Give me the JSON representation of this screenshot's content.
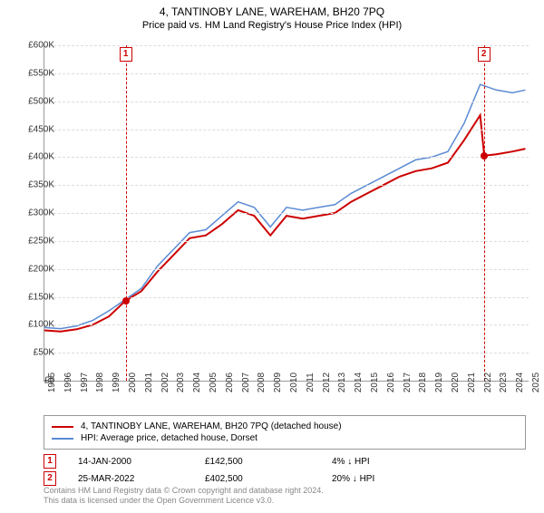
{
  "title": "4, TANTINOBY LANE, WAREHAM, BH20 7PQ",
  "subtitle": "Price paid vs. HM Land Registry's House Price Index (HPI)",
  "chart": {
    "type": "line",
    "x_start_year": 1995,
    "x_end_year": 2025,
    "ylim": [
      0,
      600000
    ],
    "ytick_step": 50000,
    "ylabels": [
      "£0",
      "£50K",
      "£100K",
      "£150K",
      "£200K",
      "£250K",
      "£300K",
      "£350K",
      "£400K",
      "£450K",
      "£500K",
      "£550K",
      "£600K"
    ],
    "xlabels": [
      "1995",
      "1996",
      "1997",
      "1998",
      "1999",
      "2000",
      "2001",
      "2002",
      "2003",
      "2004",
      "2005",
      "2006",
      "2007",
      "2008",
      "2009",
      "2010",
      "2011",
      "2012",
      "2013",
      "2014",
      "2015",
      "2016",
      "2017",
      "2018",
      "2019",
      "2020",
      "2021",
      "2022",
      "2023",
      "2024",
      "2025"
    ],
    "background_color": "#ffffff",
    "grid_color": "#dddddd",
    "series": [
      {
        "name": "property",
        "label": "4, TANTINOBY LANE, WAREHAM, BH20 7PQ (detached house)",
        "color": "#cc0000",
        "width": 2,
        "data": [
          [
            1995,
            90000
          ],
          [
            1996,
            88000
          ],
          [
            1997,
            92000
          ],
          [
            1998,
            100000
          ],
          [
            1999,
            115000
          ],
          [
            2000,
            142500
          ],
          [
            2001,
            160000
          ],
          [
            2002,
            195000
          ],
          [
            2003,
            225000
          ],
          [
            2004,
            255000
          ],
          [
            2005,
            260000
          ],
          [
            2006,
            280000
          ],
          [
            2007,
            305000
          ],
          [
            2008,
            295000
          ],
          [
            2009,
            260000
          ],
          [
            2010,
            295000
          ],
          [
            2011,
            290000
          ],
          [
            2012,
            295000
          ],
          [
            2013,
            300000
          ],
          [
            2014,
            320000
          ],
          [
            2015,
            335000
          ],
          [
            2016,
            350000
          ],
          [
            2017,
            365000
          ],
          [
            2018,
            375000
          ],
          [
            2019,
            380000
          ],
          [
            2020,
            390000
          ],
          [
            2021,
            430000
          ],
          [
            2022,
            475000
          ],
          [
            2022.25,
            402500
          ],
          [
            2023,
            405000
          ],
          [
            2024,
            410000
          ],
          [
            2024.8,
            415000
          ]
        ]
      },
      {
        "name": "hpi",
        "label": "HPI: Average price, detached house, Dorset",
        "color": "#5b8bd4",
        "width": 1.5,
        "data": [
          [
            1995,
            95000
          ],
          [
            1996,
            93000
          ],
          [
            1997,
            98000
          ],
          [
            1998,
            108000
          ],
          [
            1999,
            125000
          ],
          [
            2000,
            145000
          ],
          [
            2001,
            165000
          ],
          [
            2002,
            205000
          ],
          [
            2003,
            235000
          ],
          [
            2004,
            265000
          ],
          [
            2005,
            270000
          ],
          [
            2006,
            295000
          ],
          [
            2007,
            320000
          ],
          [
            2008,
            310000
          ],
          [
            2009,
            275000
          ],
          [
            2010,
            310000
          ],
          [
            2011,
            305000
          ],
          [
            2012,
            310000
          ],
          [
            2013,
            315000
          ],
          [
            2014,
            335000
          ],
          [
            2015,
            350000
          ],
          [
            2016,
            365000
          ],
          [
            2017,
            380000
          ],
          [
            2018,
            395000
          ],
          [
            2019,
            400000
          ],
          [
            2020,
            410000
          ],
          [
            2021,
            460000
          ],
          [
            2022,
            530000
          ],
          [
            2023,
            520000
          ],
          [
            2024,
            515000
          ],
          [
            2024.8,
            520000
          ]
        ]
      }
    ],
    "markers": [
      {
        "n": "1",
        "year": 2000.04,
        "value": 142500,
        "color": "#cc0000"
      },
      {
        "n": "2",
        "year": 2022.23,
        "value": 402500,
        "color": "#cc0000"
      }
    ]
  },
  "legend": [
    {
      "color": "#cc0000",
      "label": "4, TANTINOBY LANE, WAREHAM, BH20 7PQ (detached house)"
    },
    {
      "color": "#5b8bd4",
      "label": "HPI: Average price, detached house, Dorset"
    }
  ],
  "transactions": [
    {
      "n": "1",
      "color": "#cc0000",
      "date": "14-JAN-2000",
      "price": "£142,500",
      "diff": "4%",
      "arrow": "↓",
      "vs": "HPI"
    },
    {
      "n": "2",
      "color": "#cc0000",
      "date": "25-MAR-2022",
      "price": "£402,500",
      "diff": "20%",
      "arrow": "↓",
      "vs": "HPI"
    }
  ],
  "footer1": "Contains HM Land Registry data © Crown copyright and database right 2024.",
  "footer2": "This data is licensed under the Open Government Licence v3.0."
}
